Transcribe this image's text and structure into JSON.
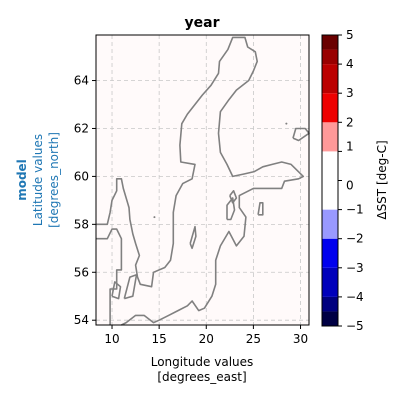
{
  "chart_data": {
    "type": "heatmap",
    "title": "year",
    "xlabel_line1": "Longitude values",
    "xlabel_line2": "[degrees_east]",
    "ylabel_model": "model",
    "ylabel_line1": "Latitude values",
    "ylabel_line2": "[degrees_north]",
    "xlim": [
      8.3,
      30.9
    ],
    "ylim": [
      53.8,
      65.9
    ],
    "xticks": [
      10,
      15,
      20,
      25,
      30
    ],
    "yticks": [
      54,
      56,
      58,
      60,
      62,
      64
    ],
    "grid": true,
    "field_value_description": "≈0 ΔSST over basin",
    "colorbar": {
      "label": "ΔSST [deg-C]",
      "ticks": [
        -5,
        -4,
        -3,
        -2,
        -1,
        0,
        1,
        2,
        3,
        4,
        5
      ],
      "tick_labels": [
        "−5",
        "−4",
        "−3",
        "−2",
        "−1",
        "0",
        "1",
        "2",
        "3",
        "4",
        "5"
      ],
      "levels": [
        -5,
        -4.5,
        -4,
        -3,
        -2,
        -1,
        1,
        2,
        3,
        4,
        4.5,
        5
      ],
      "colors": [
        "#000044",
        "#00007f",
        "#0000bb",
        "#0000ee",
        "#9999ff",
        "#ffffff",
        "#ff9999",
        "#ee0000",
        "#bb0000",
        "#990000",
        "#6a0000"
      ]
    },
    "coastline": [
      [
        [
          9.8,
          53.8
        ],
        [
          9.8,
          55.3
        ],
        [
          10.5,
          55.3
        ],
        [
          10.5,
          56.1
        ],
        [
          11.0,
          56.1
        ],
        [
          11.0,
          57.4
        ],
        [
          10.5,
          57.8
        ],
        [
          10.0,
          57.8
        ],
        [
          9.5,
          57.4
        ],
        [
          8.3,
          57.4
        ]
      ],
      [
        [
          8.3,
          58.0
        ],
        [
          9.5,
          58.0
        ],
        [
          9.8,
          58.5
        ],
        [
          10.0,
          59.0
        ],
        [
          10.5,
          59.4
        ],
        [
          10.5,
          59.9
        ],
        [
          11.0,
          59.9
        ],
        [
          11.2,
          59.5
        ],
        [
          11.8,
          58.7
        ],
        [
          11.9,
          58.2
        ],
        [
          12.2,
          57.6
        ],
        [
          12.5,
          57.2
        ],
        [
          12.9,
          56.7
        ],
        [
          12.5,
          56.3
        ],
        [
          12.7,
          55.8
        ],
        [
          13.0,
          55.5
        ],
        [
          14.2,
          55.4
        ],
        [
          14.4,
          56.0
        ],
        [
          15.6,
          56.2
        ],
        [
          16.2,
          56.5
        ],
        [
          16.5,
          57.2
        ],
        [
          16.5,
          58.5
        ],
        [
          16.8,
          59.2
        ],
        [
          17.5,
          59.7
        ],
        [
          18.5,
          59.9
        ],
        [
          18.8,
          60.5
        ],
        [
          17.3,
          60.6
        ],
        [
          17.2,
          61.3
        ],
        [
          17.4,
          62.2
        ],
        [
          18.0,
          62.6
        ],
        [
          19.6,
          63.4
        ],
        [
          20.5,
          63.8
        ],
        [
          21.3,
          64.3
        ],
        [
          21.4,
          64.8
        ],
        [
          22.3,
          65.3
        ],
        [
          22.8,
          65.8
        ],
        [
          24.1,
          65.8
        ],
        [
          24.4,
          65.4
        ],
        [
          25.2,
          65.2
        ],
        [
          25.4,
          64.8
        ],
        [
          25.0,
          64.4
        ],
        [
          24.5,
          64.0
        ],
        [
          23.2,
          63.6
        ],
        [
          22.4,
          63.2
        ],
        [
          21.5,
          62.7
        ],
        [
          21.3,
          61.8
        ],
        [
          21.5,
          61.0
        ],
        [
          22.2,
          60.5
        ],
        [
          22.8,
          60.0
        ],
        [
          24.0,
          60.1
        ],
        [
          25.1,
          60.2
        ],
        [
          26.0,
          60.4
        ],
        [
          27.0,
          60.5
        ],
        [
          28.0,
          60.6
        ],
        [
          29.0,
          60.5
        ],
        [
          30.3,
          60.0
        ],
        [
          29.8,
          59.9
        ],
        [
          28.3,
          59.8
        ],
        [
          28.0,
          59.5
        ],
        [
          27.5,
          59.5
        ],
        [
          26.5,
          59.5
        ],
        [
          25.0,
          59.5
        ],
        [
          24.0,
          59.3
        ],
        [
          23.5,
          59.2
        ],
        [
          23.5,
          58.7
        ],
        [
          24.2,
          58.3
        ],
        [
          24.0,
          57.5
        ],
        [
          23.2,
          57.1
        ],
        [
          22.4,
          57.7
        ],
        [
          21.5,
          57.1
        ],
        [
          21.0,
          56.5
        ],
        [
          21.0,
          55.5
        ],
        [
          20.6,
          55.0
        ],
        [
          19.8,
          54.5
        ],
        [
          19.2,
          54.4
        ],
        [
          18.5,
          54.8
        ],
        [
          18.0,
          54.6
        ],
        [
          17.0,
          54.4
        ],
        [
          16.0,
          54.2
        ],
        [
          15.0,
          54.0
        ],
        [
          14.4,
          53.9
        ],
        [
          13.4,
          54.2
        ],
        [
          12.5,
          54.2
        ],
        [
          11.5,
          53.9
        ],
        [
          11.0,
          53.8
        ]
      ],
      [
        [
          10.0,
          55.0
        ],
        [
          10.3,
          55.6
        ],
        [
          10.9,
          55.4
        ],
        [
          10.7,
          54.9
        ],
        [
          10.0,
          55.0
        ]
      ],
      [
        [
          11.3,
          54.9
        ],
        [
          11.9,
          55.8
        ],
        [
          12.6,
          55.9
        ],
        [
          12.2,
          55.0
        ],
        [
          11.3,
          54.9
        ]
      ],
      [
        [
          18.3,
          57.2
        ],
        [
          18.8,
          57.9
        ],
        [
          18.9,
          57.5
        ],
        [
          18.5,
          57.0
        ],
        [
          18.3,
          57.2
        ]
      ],
      [
        [
          22.2,
          58.2
        ],
        [
          22.2,
          58.8
        ],
        [
          22.8,
          59.1
        ],
        [
          23.0,
          58.6
        ],
        [
          22.6,
          58.2
        ],
        [
          22.2,
          58.2
        ]
      ],
      [
        [
          25.5,
          58.4
        ],
        [
          25.7,
          58.9
        ],
        [
          26.0,
          58.9
        ],
        [
          26.0,
          58.4
        ],
        [
          25.5,
          58.4
        ]
      ],
      [
        [
          22.5,
          59.2
        ],
        [
          22.9,
          59.4
        ],
        [
          23.2,
          59.1
        ],
        [
          22.8,
          58.9
        ],
        [
          22.5,
          59.2
        ]
      ],
      [
        [
          29.2,
          61.6
        ],
        [
          29.5,
          62.0
        ],
        [
          30.5,
          62.0
        ],
        [
          30.9,
          61.8
        ],
        [
          29.8,
          61.5
        ],
        [
          29.2,
          61.6
        ]
      ]
    ]
  }
}
